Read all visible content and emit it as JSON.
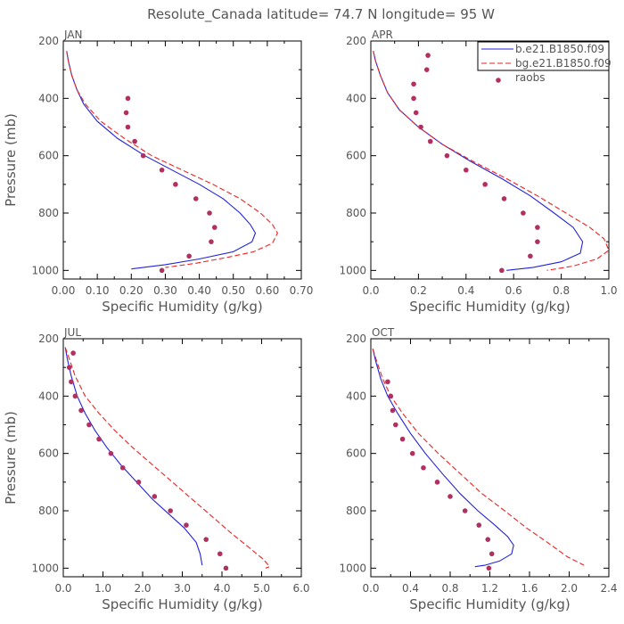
{
  "title": "Resolute_Canada  latitude= 74.7 N longitude= 95 W",
  "colors": {
    "model1": "#2222dd",
    "model2": "#ee2222",
    "obs": "#b03060",
    "axis": "#000000",
    "text": "#555555"
  },
  "legend": {
    "entries": [
      {
        "label": "b.e21.B1850.f09",
        "style": "solid",
        "color": "#2222dd"
      },
      {
        "label": "bg.e21.B1850.f09",
        "style": "dashed",
        "color": "#ee2222"
      },
      {
        "label": "raobs",
        "style": "dots",
        "color": "#b03060"
      }
    ]
  },
  "chart_data": [
    {
      "type": "line",
      "title": "JAN",
      "xlabel": "Specific Humidity (g/kg)",
      "ylabel": "Pressure (mb)",
      "xlim": [
        0,
        0.7
      ],
      "ylim": [
        200,
        1030
      ],
      "xticks": [
        0,
        0.1,
        0.2,
        0.3,
        0.4,
        0.5,
        0.6,
        0.7
      ],
      "xticklabels": [
        "0.00",
        "0.10",
        "0.20",
        "0.30",
        "0.40",
        "0.50",
        "0.60",
        "0.70"
      ],
      "yticks": [
        200,
        400,
        600,
        800,
        1000
      ],
      "yticklabels": [
        "200",
        "400",
        "600",
        "800",
        "1000"
      ],
      "series": [
        {
          "name": "b.e21.B1850.f09",
          "style": "solid",
          "points": [
            [
              0.01,
              235
            ],
            [
              0.015,
              270
            ],
            [
              0.025,
              320
            ],
            [
              0.04,
              370
            ],
            [
              0.06,
              420
            ],
            [
              0.1,
              480
            ],
            [
              0.16,
              540
            ],
            [
              0.24,
              600
            ],
            [
              0.32,
              650
            ],
            [
              0.4,
              700
            ],
            [
              0.47,
              750
            ],
            [
              0.52,
              800
            ],
            [
              0.55,
              840
            ],
            [
              0.565,
              870
            ],
            [
              0.555,
              900
            ],
            [
              0.5,
              935
            ],
            [
              0.4,
              960
            ],
            [
              0.3,
              980
            ],
            [
              0.2,
              995
            ]
          ]
        },
        {
          "name": "bg.e21.B1850.f09",
          "style": "dashed",
          "points": [
            [
              0.01,
              235
            ],
            [
              0.015,
              270
            ],
            [
              0.025,
              320
            ],
            [
              0.04,
              370
            ],
            [
              0.065,
              420
            ],
            [
              0.11,
              480
            ],
            [
              0.18,
              540
            ],
            [
              0.26,
              600
            ],
            [
              0.35,
              650
            ],
            [
              0.44,
              700
            ],
            [
              0.52,
              750
            ],
            [
              0.58,
              800
            ],
            [
              0.615,
              840
            ],
            [
              0.63,
              870
            ],
            [
              0.615,
              905
            ],
            [
              0.56,
              935
            ],
            [
              0.48,
              955
            ],
            [
              0.39,
              975
            ],
            [
              0.3,
              990
            ]
          ]
        },
        {
          "name": "raobs",
          "style": "dots",
          "points": [
            [
              0.19,
              400
            ],
            [
              0.185,
              450
            ],
            [
              0.19,
              500
            ],
            [
              0.21,
              550
            ],
            [
              0.235,
              600
            ],
            [
              0.29,
              650
            ],
            [
              0.33,
              700
            ],
            [
              0.39,
              750
            ],
            [
              0.43,
              800
            ],
            [
              0.445,
              850
            ],
            [
              0.435,
              900
            ],
            [
              0.37,
              950
            ],
            [
              0.29,
              1000
            ]
          ]
        }
      ]
    },
    {
      "type": "line",
      "title": "APR",
      "xlabel": "Specific Humidity (g/kg)",
      "ylabel": "",
      "xlim": [
        0,
        1.0
      ],
      "ylim": [
        200,
        1030
      ],
      "xticks": [
        0,
        0.2,
        0.4,
        0.6,
        0.8,
        1.0
      ],
      "xticklabels": [
        "0.0",
        "0.2",
        "0.4",
        "0.6",
        "0.8",
        "1.0"
      ],
      "yticks": [
        200,
        400,
        600,
        800,
        1000
      ],
      "yticklabels": [
        "200",
        "400",
        "600",
        "800",
        "1000"
      ],
      "series": [
        {
          "name": "b.e21.B1850.f09",
          "style": "solid",
          "points": [
            [
              0.01,
              235
            ],
            [
              0.02,
              270
            ],
            [
              0.04,
              320
            ],
            [
              0.07,
              380
            ],
            [
              0.12,
              440
            ],
            [
              0.2,
              500
            ],
            [
              0.3,
              560
            ],
            [
              0.42,
              620
            ],
            [
              0.55,
              680
            ],
            [
              0.67,
              740
            ],
            [
              0.77,
              800
            ],
            [
              0.85,
              850
            ],
            [
              0.89,
              900
            ],
            [
              0.88,
              940
            ],
            [
              0.8,
              970
            ],
            [
              0.68,
              990
            ],
            [
              0.57,
              1000
            ]
          ]
        },
        {
          "name": "bg.e21.B1850.f09",
          "style": "dashed",
          "points": [
            [
              0.01,
              235
            ],
            [
              0.02,
              270
            ],
            [
              0.04,
              320
            ],
            [
              0.07,
              380
            ],
            [
              0.12,
              440
            ],
            [
              0.2,
              500
            ],
            [
              0.3,
              560
            ],
            [
              0.43,
              620
            ],
            [
              0.57,
              680
            ],
            [
              0.7,
              740
            ],
            [
              0.82,
              800
            ],
            [
              0.92,
              850
            ],
            [
              0.98,
              890
            ],
            [
              1.0,
              930
            ],
            [
              0.95,
              960
            ],
            [
              0.85,
              985
            ],
            [
              0.74,
              1000
            ]
          ]
        },
        {
          "name": "raobs",
          "style": "dots",
          "points": [
            [
              0.24,
              250
            ],
            [
              0.235,
              300
            ],
            [
              0.18,
              350
            ],
            [
              0.18,
              400
            ],
            [
              0.19,
              450
            ],
            [
              0.21,
              500
            ],
            [
              0.25,
              550
            ],
            [
              0.32,
              600
            ],
            [
              0.4,
              650
            ],
            [
              0.48,
              700
            ],
            [
              0.56,
              750
            ],
            [
              0.64,
              800
            ],
            [
              0.7,
              850
            ],
            [
              0.7,
              900
            ],
            [
              0.67,
              950
            ],
            [
              0.55,
              1000
            ]
          ]
        }
      ]
    },
    {
      "type": "line",
      "title": "JUL",
      "xlabel": "Specific Humidity (g/kg)",
      "ylabel": "Pressure (mb)",
      "xlim": [
        0,
        6.0
      ],
      "ylim": [
        200,
        1030
      ],
      "xticks": [
        0,
        1,
        2,
        3,
        4,
        5,
        6
      ],
      "xticklabels": [
        "0.0",
        "1.0",
        "2.0",
        "3.0",
        "4.0",
        "5.0",
        "6.0"
      ],
      "yticks": [
        200,
        400,
        600,
        800,
        1000
      ],
      "yticklabels": [
        "200",
        "400",
        "600",
        "800",
        "1000"
      ],
      "series": [
        {
          "name": "b.e21.B1850.f09",
          "style": "solid",
          "points": [
            [
              0.05,
              230
            ],
            [
              0.1,
              270
            ],
            [
              0.2,
              330
            ],
            [
              0.35,
              400
            ],
            [
              0.55,
              460
            ],
            [
              0.8,
              520
            ],
            [
              1.1,
              580
            ],
            [
              1.45,
              640
            ],
            [
              1.85,
              700
            ],
            [
              2.25,
              760
            ],
            [
              2.65,
              810
            ],
            [
              3.05,
              860
            ],
            [
              3.35,
              910
            ],
            [
              3.45,
              950
            ],
            [
              3.5,
              990
            ]
          ]
        },
        {
          "name": "bg.e21.B1850.f09",
          "style": "dashed",
          "points": [
            [
              0.05,
              230
            ],
            [
              0.15,
              270
            ],
            [
              0.3,
              330
            ],
            [
              0.55,
              400
            ],
            [
              0.9,
              460
            ],
            [
              1.3,
              520
            ],
            [
              1.75,
              580
            ],
            [
              2.25,
              640
            ],
            [
              2.75,
              700
            ],
            [
              3.25,
              760
            ],
            [
              3.75,
              820
            ],
            [
              4.25,
              880
            ],
            [
              4.7,
              930
            ],
            [
              5.05,
              970
            ],
            [
              5.2,
              995
            ],
            [
              5.1,
              1000
            ]
          ]
        },
        {
          "name": "raobs",
          "style": "dots",
          "points": [
            [
              0.25,
              250
            ],
            [
              0.15,
              300
            ],
            [
              0.2,
              350
            ],
            [
              0.3,
              400
            ],
            [
              0.45,
              450
            ],
            [
              0.65,
              500
            ],
            [
              0.9,
              550
            ],
            [
              1.2,
              600
            ],
            [
              1.5,
              650
            ],
            [
              1.9,
              700
            ],
            [
              2.3,
              750
            ],
            [
              2.7,
              800
            ],
            [
              3.1,
              850
            ],
            [
              3.6,
              900
            ],
            [
              3.95,
              950
            ],
            [
              4.1,
              1000
            ]
          ]
        }
      ]
    },
    {
      "type": "line",
      "title": "OCT",
      "xlabel": "Specific Humidity (g/kg)",
      "ylabel": "",
      "xlim": [
        0,
        2.4
      ],
      "ylim": [
        200,
        1030
      ],
      "xticks": [
        0,
        0.4,
        0.8,
        1.2,
        1.6,
        2.0,
        2.4
      ],
      "xticklabels": [
        "0.0",
        "0.4",
        "0.8",
        "1.2",
        "1.6",
        "2.0",
        "2.4"
      ],
      "yticks": [
        200,
        400,
        600,
        800,
        1000
      ],
      "yticklabels": [
        "200",
        "400",
        "600",
        "800",
        "1000"
      ],
      "series": [
        {
          "name": "b.e21.B1850.f09",
          "style": "solid",
          "points": [
            [
              0.02,
              235
            ],
            [
              0.05,
              280
            ],
            [
              0.1,
              340
            ],
            [
              0.17,
              400
            ],
            [
              0.27,
              460
            ],
            [
              0.4,
              530
            ],
            [
              0.55,
              600
            ],
            [
              0.72,
              670
            ],
            [
              0.9,
              740
            ],
            [
              1.08,
              800
            ],
            [
              1.25,
              850
            ],
            [
              1.38,
              890
            ],
            [
              1.44,
              920
            ],
            [
              1.42,
              950
            ],
            [
              1.3,
              975
            ],
            [
              1.15,
              990
            ],
            [
              1.05,
              995
            ]
          ]
        },
        {
          "name": "bg.e21.B1850.f09",
          "style": "dashed",
          "points": [
            [
              0.02,
              235
            ],
            [
              0.06,
              280
            ],
            [
              0.12,
              340
            ],
            [
              0.2,
              400
            ],
            [
              0.32,
              460
            ],
            [
              0.48,
              530
            ],
            [
              0.68,
              600
            ],
            [
              0.9,
              670
            ],
            [
              1.12,
              740
            ],
            [
              1.35,
              800
            ],
            [
              1.57,
              860
            ],
            [
              1.78,
              910
            ],
            [
              1.98,
              960
            ],
            [
              2.15,
              990
            ]
          ]
        },
        {
          "name": "raobs",
          "style": "dots",
          "points": [
            [
              0.17,
              350
            ],
            [
              0.2,
              400
            ],
            [
              0.22,
              450
            ],
            [
              0.25,
              500
            ],
            [
              0.32,
              550
            ],
            [
              0.42,
              600
            ],
            [
              0.53,
              650
            ],
            [
              0.67,
              700
            ],
            [
              0.8,
              750
            ],
            [
              0.95,
              800
            ],
            [
              1.09,
              850
            ],
            [
              1.18,
              900
            ],
            [
              1.22,
              950
            ],
            [
              1.19,
              1000
            ]
          ]
        }
      ]
    }
  ]
}
